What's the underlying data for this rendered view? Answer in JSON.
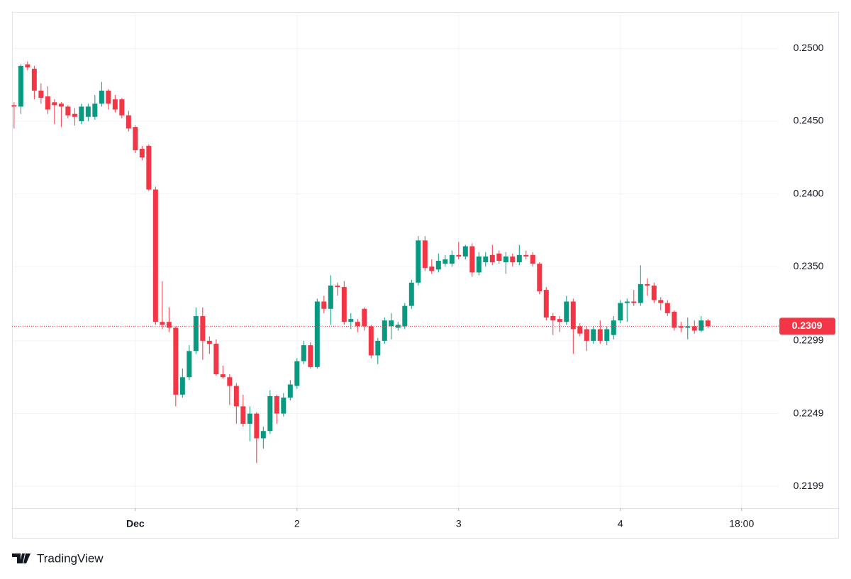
{
  "chart_data": {
    "type": "candlestick",
    "up_color": "#089981",
    "down_color": "#f23645",
    "grid": true,
    "open": [
      0.2461,
      0.246,
      0.2489,
      0.2486,
      0.2471,
      0.2467,
      0.2463,
      0.2462,
      0.246,
      0.2455,
      0.245,
      0.2453,
      0.2453,
      0.2462,
      0.2471,
      0.2465,
      0.2465,
      0.2454,
      0.2446,
      0.2431,
      0.2433,
      0.2403,
      0.2312,
      0.2312,
      0.2308,
      0.2262,
      0.2274,
      0.2292,
      0.2316,
      0.2299,
      0.2297,
      0.2276,
      0.2274,
      0.2268,
      0.2254,
      0.2242,
      0.2249,
      0.2232,
      0.2237,
      0.2261,
      0.2249,
      0.226,
      0.2268,
      0.2285,
      0.2296,
      0.2281,
      0.2326,
      0.2321,
      0.2337,
      0.2336,
      0.2312,
      0.2312,
      0.2321,
      0.2309,
      0.2289,
      0.2299,
      0.2309,
      0.2308,
      0.2309,
      0.2323,
      0.2339,
      0.2368,
      0.235,
      0.2348,
      0.2352,
      0.2352,
      0.2358,
      0.2357,
      0.2364,
      0.2346,
      0.2353,
      0.2358,
      0.2359,
      0.2353,
      0.2357,
      0.2353,
      0.2358,
      0.2358,
      0.2352,
      0.2334,
      0.2316,
      0.2314,
      0.2312,
      0.2326,
      0.2309,
      0.2307,
      0.2299,
      0.2307,
      0.2299,
      0.2303,
      0.2313,
      0.2325,
      0.2326,
      0.2325,
      0.2338,
      0.2337,
      0.2327,
      0.2325,
      0.2319,
      0.2309,
      0.2308,
      0.2309,
      0.2306,
      0.2313
    ],
    "high": [
      0.2463,
      0.2489,
      0.2491,
      0.2488,
      0.2476,
      0.2474,
      0.2465,
      0.2463,
      0.2461,
      0.2459,
      0.2462,
      0.2462,
      0.2468,
      0.2477,
      0.2472,
      0.2468,
      0.2466,
      0.2457,
      0.2447,
      0.2433,
      0.2434,
      0.2405,
      0.234,
      0.2322,
      0.2309,
      0.228,
      0.2296,
      0.2322,
      0.2322,
      0.2302,
      0.23,
      0.2282,
      0.2276,
      0.227,
      0.2262,
      0.2254,
      0.225,
      0.224,
      0.2265,
      0.2262,
      0.2263,
      0.2272,
      0.2287,
      0.2299,
      0.2298,
      0.2328,
      0.233,
      0.2344,
      0.2339,
      0.234,
      0.2318,
      0.2314,
      0.2322,
      0.231,
      0.2301,
      0.2315,
      0.2318,
      0.2312,
      0.2325,
      0.2341,
      0.2371,
      0.2371,
      0.2355,
      0.2359,
      0.2358,
      0.2361,
      0.2367,
      0.2365,
      0.2366,
      0.236,
      0.236,
      0.2365,
      0.2361,
      0.236,
      0.2359,
      0.2365,
      0.2361,
      0.236,
      0.2353,
      0.2336,
      0.2318,
      0.2316,
      0.233,
      0.2328,
      0.2311,
      0.2309,
      0.2309,
      0.2313,
      0.2309,
      0.2316,
      0.2327,
      0.2328,
      0.2334,
      0.2351,
      0.2342,
      0.2339,
      0.2329,
      0.2327,
      0.232,
      0.2312,
      0.2315,
      0.2313,
      0.2316,
      0.2314
    ],
    "low": [
      0.2445,
      0.2455,
      0.2485,
      0.2465,
      0.2462,
      0.2455,
      0.2448,
      0.2446,
      0.2452,
      0.2447,
      0.2448,
      0.245,
      0.2451,
      0.246,
      0.2458,
      0.2456,
      0.2452,
      0.2443,
      0.2428,
      0.2423,
      0.2402,
      0.231,
      0.2307,
      0.2305,
      0.2254,
      0.226,
      0.2272,
      0.229,
      0.2286,
      0.229,
      0.2275,
      0.2273,
      0.2255,
      0.2242,
      0.224,
      0.223,
      0.2215,
      0.2225,
      0.2235,
      0.2242,
      0.2247,
      0.2258,
      0.2266,
      0.2283,
      0.228,
      0.228,
      0.2318,
      0.231,
      0.233,
      0.231,
      0.2307,
      0.2305,
      0.2306,
      0.2287,
      0.2283,
      0.2297,
      0.23,
      0.2306,
      0.2307,
      0.2321,
      0.2337,
      0.2347,
      0.2345,
      0.2346,
      0.235,
      0.235,
      0.2355,
      0.2355,
      0.2343,
      0.2344,
      0.235,
      0.2351,
      0.2352,
      0.2345,
      0.235,
      0.2351,
      0.2355,
      0.235,
      0.2331,
      0.2313,
      0.2303,
      0.2305,
      0.231,
      0.229,
      0.2302,
      0.2292,
      0.2297,
      0.2297,
      0.2296,
      0.23,
      0.2311,
      0.2312,
      0.2323,
      0.2323,
      0.233,
      0.2325,
      0.232,
      0.2316,
      0.2306,
      0.2305,
      0.23,
      0.2304,
      0.2305,
      0.2308
    ],
    "close": [
      0.246,
      0.2488,
      0.2487,
      0.2471,
      0.2466,
      0.2458,
      0.2461,
      0.246,
      0.2454,
      0.2453,
      0.246,
      0.246,
      0.2462,
      0.2471,
      0.2462,
      0.2458,
      0.2454,
      0.2445,
      0.243,
      0.2425,
      0.2403,
      0.2312,
      0.231,
      0.2308,
      0.2262,
      0.2274,
      0.2292,
      0.2316,
      0.2299,
      0.2297,
      0.2276,
      0.2274,
      0.2268,
      0.2254,
      0.2242,
      0.2249,
      0.2232,
      0.2237,
      0.2261,
      0.2249,
      0.226,
      0.2269,
      0.2285,
      0.2296,
      0.2281,
      0.2326,
      0.2321,
      0.2337,
      0.2336,
      0.2312,
      0.2314,
      0.2309,
      0.2309,
      0.2289,
      0.2299,
      0.2313,
      0.2313,
      0.231,
      0.2323,
      0.2339,
      0.2368,
      0.2349,
      0.2347,
      0.2354,
      0.2355,
      0.2358,
      0.2357,
      0.2364,
      0.2346,
      0.2357,
      0.2357,
      0.2353,
      0.2354,
      0.2357,
      0.2353,
      0.2358,
      0.2357,
      0.2352,
      0.2333,
      0.2315,
      0.2313,
      0.2312,
      0.2326,
      0.2307,
      0.2304,
      0.2299,
      0.2307,
      0.2299,
      0.2307,
      0.2313,
      0.2325,
      0.2326,
      0.2325,
      0.2338,
      0.2337,
      0.2327,
      0.2325,
      0.2318,
      0.2308,
      0.2308,
      0.2309,
      0.2306,
      0.2313,
      0.2309
    ],
    "xlim": [
      -0.3,
      113.5
    ],
    "xticks": [
      {
        "value": 18,
        "label": "Dec"
      },
      {
        "value": 42,
        "label": "2"
      },
      {
        "value": 66,
        "label": "3"
      },
      {
        "value": 90,
        "label": "4"
      },
      {
        "value": 108,
        "label": "18:00"
      }
    ],
    "ylim": [
      0.2184,
      0.2525
    ],
    "yticks": [
      {
        "value": 0.25,
        "label": "0.2500"
      },
      {
        "value": 0.245,
        "label": "0.2450"
      },
      {
        "value": 0.24,
        "label": "0.2400"
      },
      {
        "value": 0.235,
        "label": "0.2350"
      },
      {
        "value": 0.2299,
        "label": "0.2299"
      },
      {
        "value": 0.2249,
        "label": "0.2249"
      },
      {
        "value": 0.2199,
        "label": "0.2199"
      }
    ],
    "last_price": {
      "value": 0.2309,
      "label": "0.2309"
    }
  },
  "footer": {
    "brand": "TradingView"
  }
}
